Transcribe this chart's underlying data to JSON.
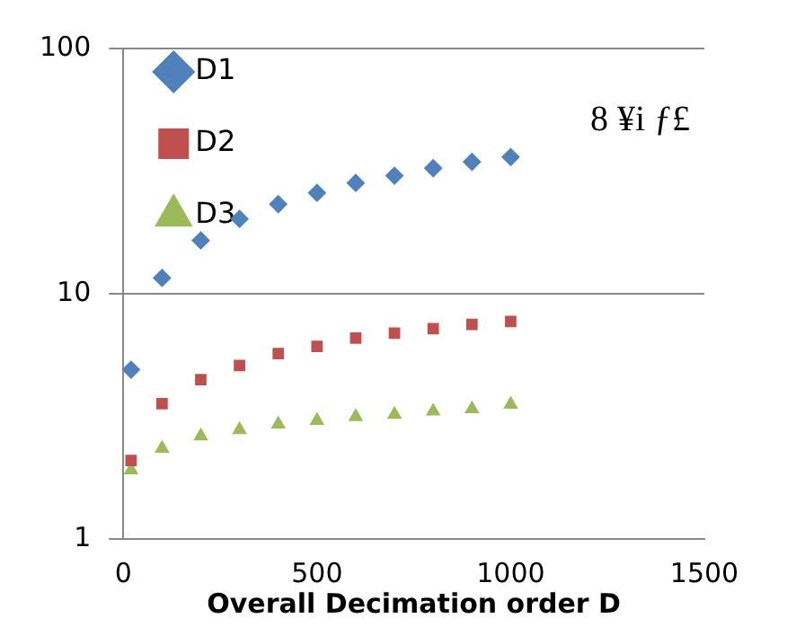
{
  "chart_data": {
    "type": "scatter",
    "xlabel": "Overall Decimation order D",
    "annotations": [
      "8 ¥i ƒ£"
    ],
    "x": [
      20,
      100,
      200,
      300,
      400,
      500,
      600,
      700,
      800,
      900,
      1000
    ],
    "series": [
      {
        "name": "D1",
        "color": "#4f81bd",
        "marker": "diamond",
        "values": [
          4.9,
          11.6,
          16.5,
          20.2,
          23.2,
          25.8,
          28.3,
          30.3,
          32.5,
          34.5,
          36.1
        ]
      },
      {
        "name": "D2",
        "color": "#c0504d",
        "marker": "square",
        "values": [
          2.09,
          3.56,
          4.46,
          5.1,
          5.7,
          6.1,
          6.6,
          6.9,
          7.2,
          7.5,
          7.7
        ]
      },
      {
        "name": "D3",
        "color": "#9bbb59",
        "marker": "triangle",
        "values": [
          1.91,
          2.34,
          2.63,
          2.79,
          2.94,
          3.04,
          3.15,
          3.22,
          3.32,
          3.39,
          3.54
        ]
      }
    ],
    "xlim": [
      0,
      1500
    ],
    "xticks": [
      0,
      500,
      1000,
      1500
    ],
    "ylim": [
      1,
      100
    ],
    "yticks": [
      1,
      10,
      100
    ],
    "log": "y",
    "grid": "y",
    "legend": "top left"
  }
}
